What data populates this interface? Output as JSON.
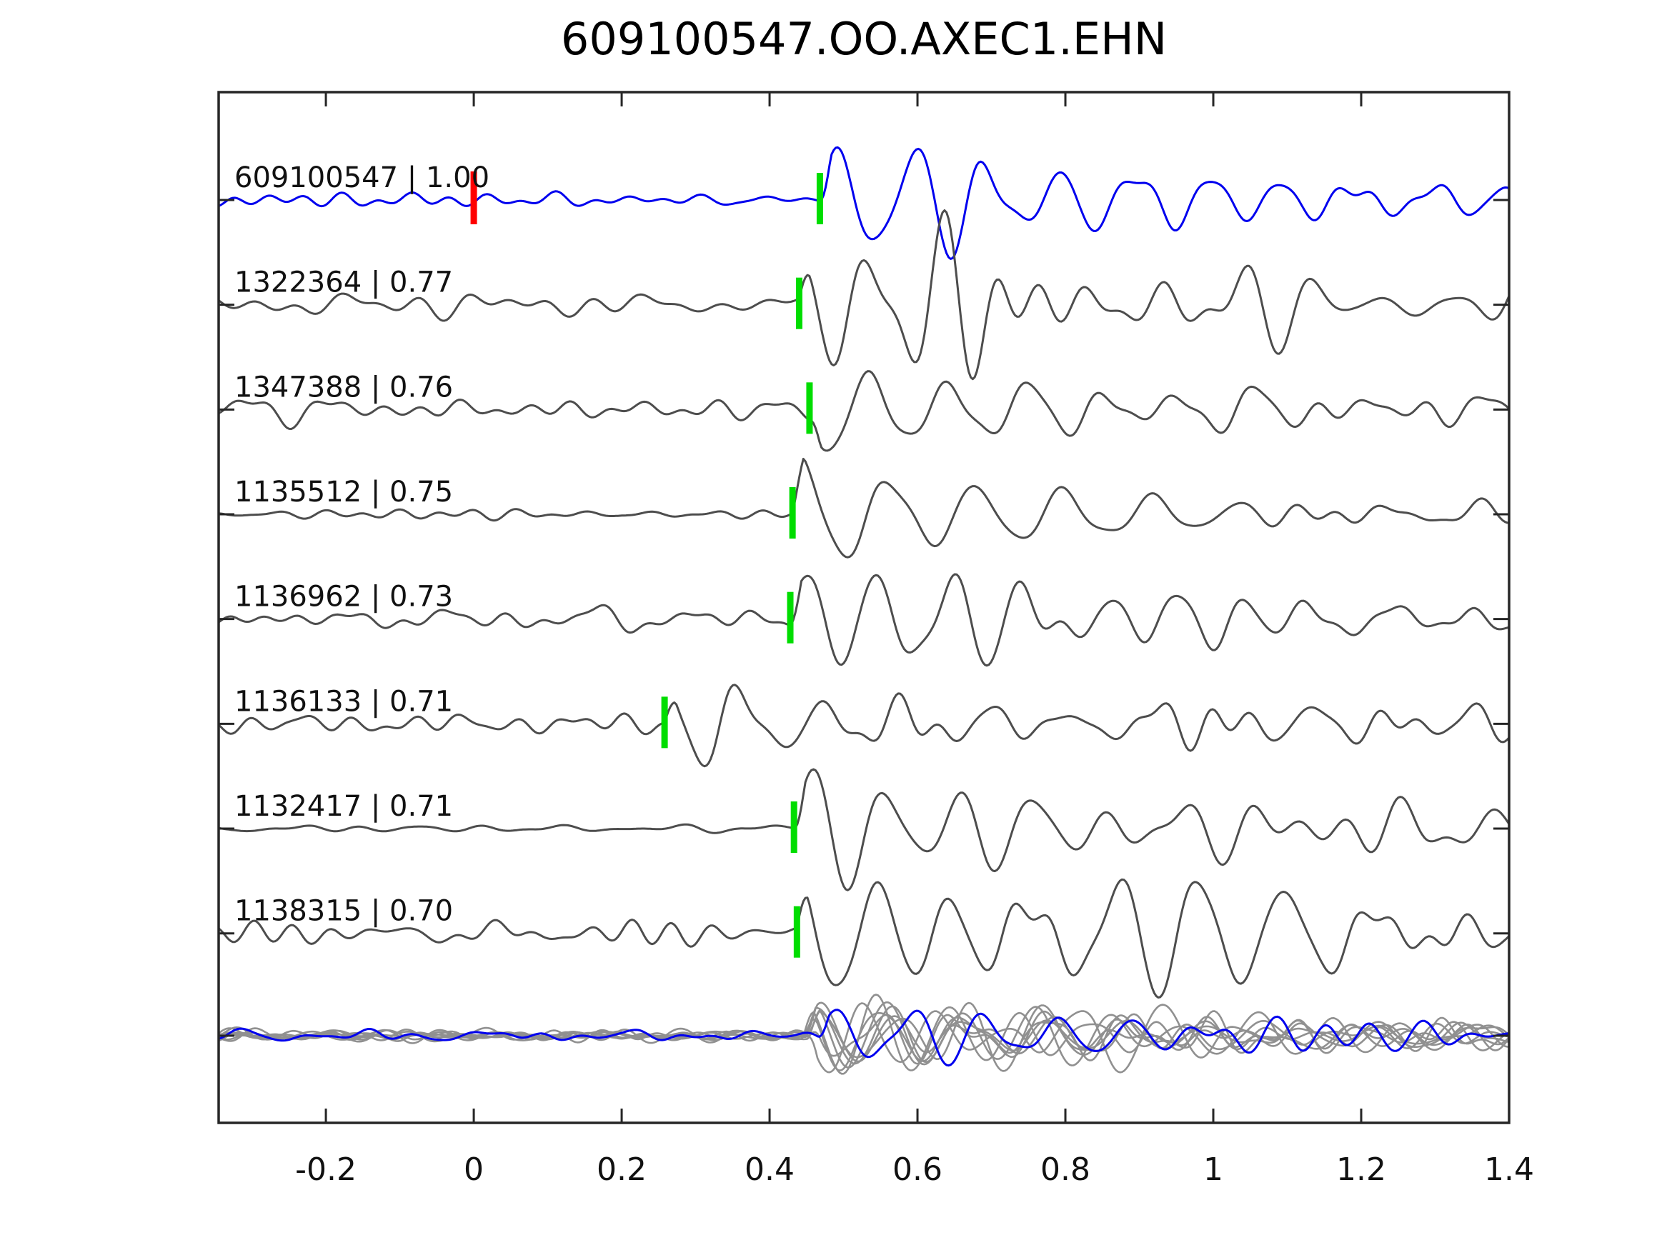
{
  "title": "609100547.OO.AXEC1.EHN",
  "colors": {
    "template_trace": "#0000ee",
    "detection_trace": "#4d4d4d",
    "overlay_trace": "#909090",
    "pick_marker": "#00dd00",
    "origin_marker": "#ff0000",
    "axis": "#262626",
    "text": "#111111",
    "background": "#ffffff"
  },
  "chart_data": {
    "type": "line",
    "title": "609100547.OO.AXEC1.EHN",
    "xlabel": "",
    "ylabel": "",
    "xlim": [
      -0.345,
      1.4
    ],
    "x_tick_values": [
      -0.2,
      0,
      0.2,
      0.4,
      0.6,
      0.8,
      1,
      1.2,
      1.4
    ],
    "x_tick_labels": [
      "-0.2",
      "0",
      "0.2",
      "0.4",
      "0.6",
      "0.8",
      "1",
      "1.2",
      "1.4"
    ],
    "grid": false,
    "legend": "none",
    "y_axis_labels": false,
    "traces": [
      {
        "id": "609100547",
        "cc": "1.00",
        "label": "609100547 | 1.00",
        "role": "template",
        "color_key": "template_trace",
        "pick_time": 0.468,
        "origin_time": 0.0,
        "waveform": {
          "seed": 20241,
          "onset": 0.468,
          "noise_amp": 9,
          "burst_amp": 78,
          "coda_amp": 36,
          "decay": 0.45,
          "period": 0.1,
          "phase": 0.0
        }
      },
      {
        "id": "1322364",
        "cc": "0.77",
        "label": "1322364 | 0.77",
        "role": "detection",
        "color_key": "detection_trace",
        "pick_time": 0.44,
        "waveform": {
          "seed": 7,
          "onset": 0.44,
          "noise_amp": 17,
          "burst_amp": 66,
          "coda_amp": 50,
          "decay": 0.55,
          "period": 0.1,
          "phase": 1.8
        }
      },
      {
        "id": "1347388",
        "cc": "0.76",
        "label": "1347388 | 0.76",
        "role": "detection",
        "color_key": "detection_trace",
        "pick_time": 0.454,
        "waveform": {
          "seed": 13,
          "onset": 0.454,
          "noise_amp": 18,
          "burst_amp": 64,
          "coda_amp": 46,
          "decay": 0.6,
          "period": 0.105,
          "phase": 3.0
        }
      },
      {
        "id": "1135512",
        "cc": "0.75",
        "label": "1135512 | 0.75",
        "role": "detection",
        "color_key": "detection_trace",
        "pick_time": 0.431,
        "waveform": {
          "seed": 21,
          "onset": 0.431,
          "noise_amp": 6,
          "burst_amp": 86,
          "coda_amp": 22,
          "decay": 0.28,
          "period": 0.12,
          "phase": 1.0
        }
      },
      {
        "id": "1136962",
        "cc": "0.73",
        "label": "1136962 | 0.73",
        "role": "detection",
        "color_key": "detection_trace",
        "pick_time": 0.428,
        "waveform": {
          "seed": 33,
          "onset": 0.428,
          "noise_amp": 12,
          "burst_amp": 72,
          "coda_amp": 34,
          "decay": 0.5,
          "period": 0.1,
          "phase": 0.3
        }
      },
      {
        "id": "1136133",
        "cc": "0.71",
        "label": "1136133 | 0.71",
        "role": "detection",
        "color_key": "detection_trace",
        "pick_time": 0.258,
        "waveform": {
          "seed": 44,
          "onset": 0.258,
          "noise_amp": 14,
          "burst_amp": 56,
          "coda_amp": 30,
          "decay": 0.45,
          "period": 0.11,
          "phase": 1.6
        }
      },
      {
        "id": "1132417",
        "cc": "0.71",
        "label": "1132417 | 0.71",
        "role": "detection",
        "color_key": "detection_trace",
        "pick_time": 0.433,
        "waveform": {
          "seed": 55,
          "onset": 0.433,
          "noise_amp": 7,
          "burst_amp": 80,
          "coda_amp": 40,
          "decay": 0.5,
          "period": 0.1,
          "phase": 0.0
        }
      },
      {
        "id": "1138315",
        "cc": "0.70",
        "label": "1138315 | 0.70",
        "role": "detection",
        "color_key": "detection_trace",
        "pick_time": 0.437,
        "waveform": {
          "seed": 66,
          "onset": 0.437,
          "noise_amp": 18,
          "burst_amp": 80,
          "coda_amp": 54,
          "decay": 0.75,
          "period": 0.11,
          "phase": 1.7
        }
      }
    ],
    "overlay": {
      "description": "all traces overlaid aligned on pick, template in blue on top",
      "gray_members": [
        {
          "seed": 71,
          "onset": 0.448,
          "noise_amp": 7,
          "burst_amp": 46,
          "coda_amp": 22,
          "decay": 0.5,
          "period": 0.1,
          "phase": 0.0
        },
        {
          "seed": 72,
          "onset": 0.452,
          "noise_amp": 7,
          "burst_amp": 40,
          "coda_amp": 24,
          "decay": 0.55,
          "period": 0.105,
          "phase": 0.8
        },
        {
          "seed": 73,
          "onset": 0.445,
          "noise_amp": 8,
          "burst_amp": 52,
          "coda_amp": 20,
          "decay": 0.45,
          "period": 0.1,
          "phase": 1.6
        },
        {
          "seed": 74,
          "onset": 0.455,
          "noise_amp": 6,
          "burst_amp": 44,
          "coda_amp": 23,
          "decay": 0.5,
          "period": 0.11,
          "phase": 2.4
        },
        {
          "seed": 75,
          "onset": 0.45,
          "noise_amp": 8,
          "burst_amp": 50,
          "coda_amp": 25,
          "decay": 0.6,
          "period": 0.1,
          "phase": 3.0
        },
        {
          "seed": 76,
          "onset": 0.447,
          "noise_amp": 7,
          "burst_amp": 42,
          "coda_amp": 21,
          "decay": 0.5,
          "period": 0.105,
          "phase": 0.5
        },
        {
          "seed": 77,
          "onset": 0.453,
          "noise_amp": 7,
          "burst_amp": 48,
          "coda_amp": 24,
          "decay": 0.55,
          "period": 0.1,
          "phase": 1.2
        },
        {
          "seed": 78,
          "onset": 0.449,
          "noise_amp": 8,
          "burst_amp": 45,
          "coda_amp": 22,
          "decay": 0.5,
          "period": 0.11,
          "phase": 2.0
        }
      ],
      "blue_member": {
        "seed": 79,
        "onset": 0.465,
        "noise_amp": 8,
        "burst_amp": 44,
        "coda_amp": 22,
        "decay": 0.5,
        "period": 0.1,
        "phase": 0.0
      }
    }
  }
}
